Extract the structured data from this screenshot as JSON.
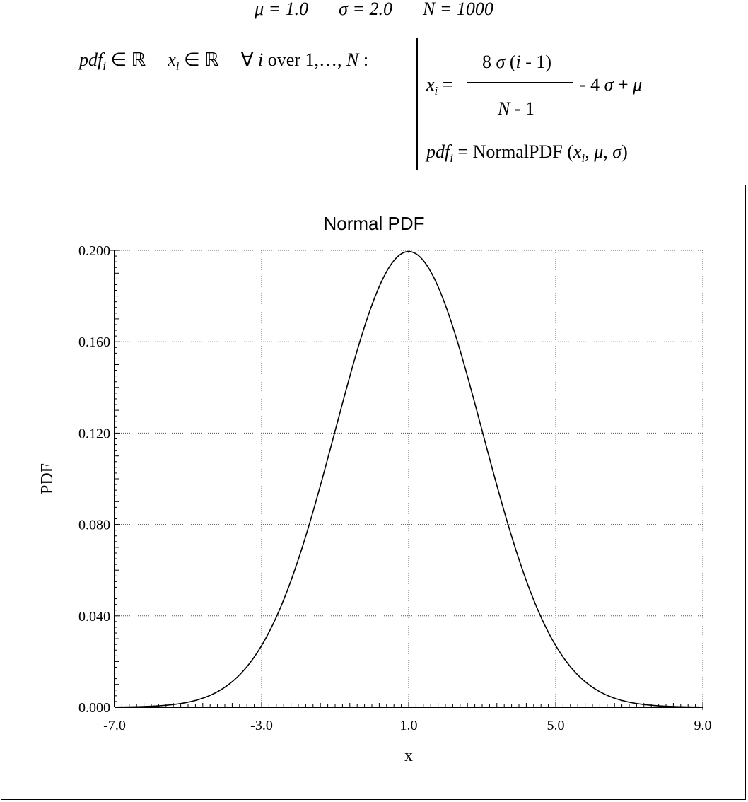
{
  "params": {
    "mu": "μ = 1.0",
    "sigma": "σ = 2.0",
    "n": "N = 1000"
  },
  "declaration": {
    "pdf": "pdf",
    "i": "i",
    "in_r1": " ∈ ℝ",
    "x": "x",
    "in_r2": " ∈ ℝ",
    "forall": "∀ ",
    "over": " over 1,…, ",
    "N": "N",
    "colon": " :"
  },
  "equations": {
    "x": "x",
    "i": "i",
    "equals": " =",
    "numerator_pre": "8 ",
    "numerator_sigma": "σ",
    "numerator_post": " (",
    "numerator_i": "i",
    "numerator_end": " - 1)",
    "denominator_N": "N",
    "denominator_rest": " - 1",
    "tail_pre": " - 4 ",
    "tail_sigma": "σ",
    "tail_plus": " + ",
    "tail_mu": "μ",
    "pdf": "pdf",
    "pdf_eq": " = NormalPDF (",
    "arg_x": "x",
    "arg_sep1": ", ",
    "arg_mu": "μ",
    "arg_sep2": ", ",
    "arg_sigma": "σ",
    "close": ")"
  },
  "chart_data": {
    "type": "line",
    "title": "Normal PDF",
    "xlabel": "x",
    "ylabel": "PDF",
    "xlim": [
      -7.0,
      9.0
    ],
    "ylim": [
      0.0,
      0.2
    ],
    "x_ticks": [
      "-7.0",
      "-3.0",
      "1.0",
      "5.0",
      "9.0"
    ],
    "x_tick_values": [
      -7.0,
      -3.0,
      1.0,
      5.0,
      9.0
    ],
    "y_ticks": [
      "0.000",
      "0.040",
      "0.080",
      "0.120",
      "0.160",
      "0.200"
    ],
    "y_tick_values": [
      0.0,
      0.04,
      0.08,
      0.12,
      0.16,
      0.2
    ],
    "grid": true,
    "series": [
      {
        "mu": 1.0,
        "sigma": 2.0,
        "n_points": 1000,
        "x_range": [
          -7.0,
          9.0
        ],
        "x": [
          -7,
          -6,
          -5,
          -4,
          -3,
          -2,
          -1,
          0,
          1,
          2,
          3,
          4,
          5,
          6,
          7,
          8,
          9
        ],
        "y": [
          6.7e-05,
          0.00044,
          0.00222,
          0.00876,
          0.027,
          0.06476,
          0.12099,
          0.17603,
          0.19947,
          0.17603,
          0.12099,
          0.06476,
          0.027,
          0.00876,
          0.00222,
          0.00044,
          6.7e-05
        ]
      }
    ]
  }
}
